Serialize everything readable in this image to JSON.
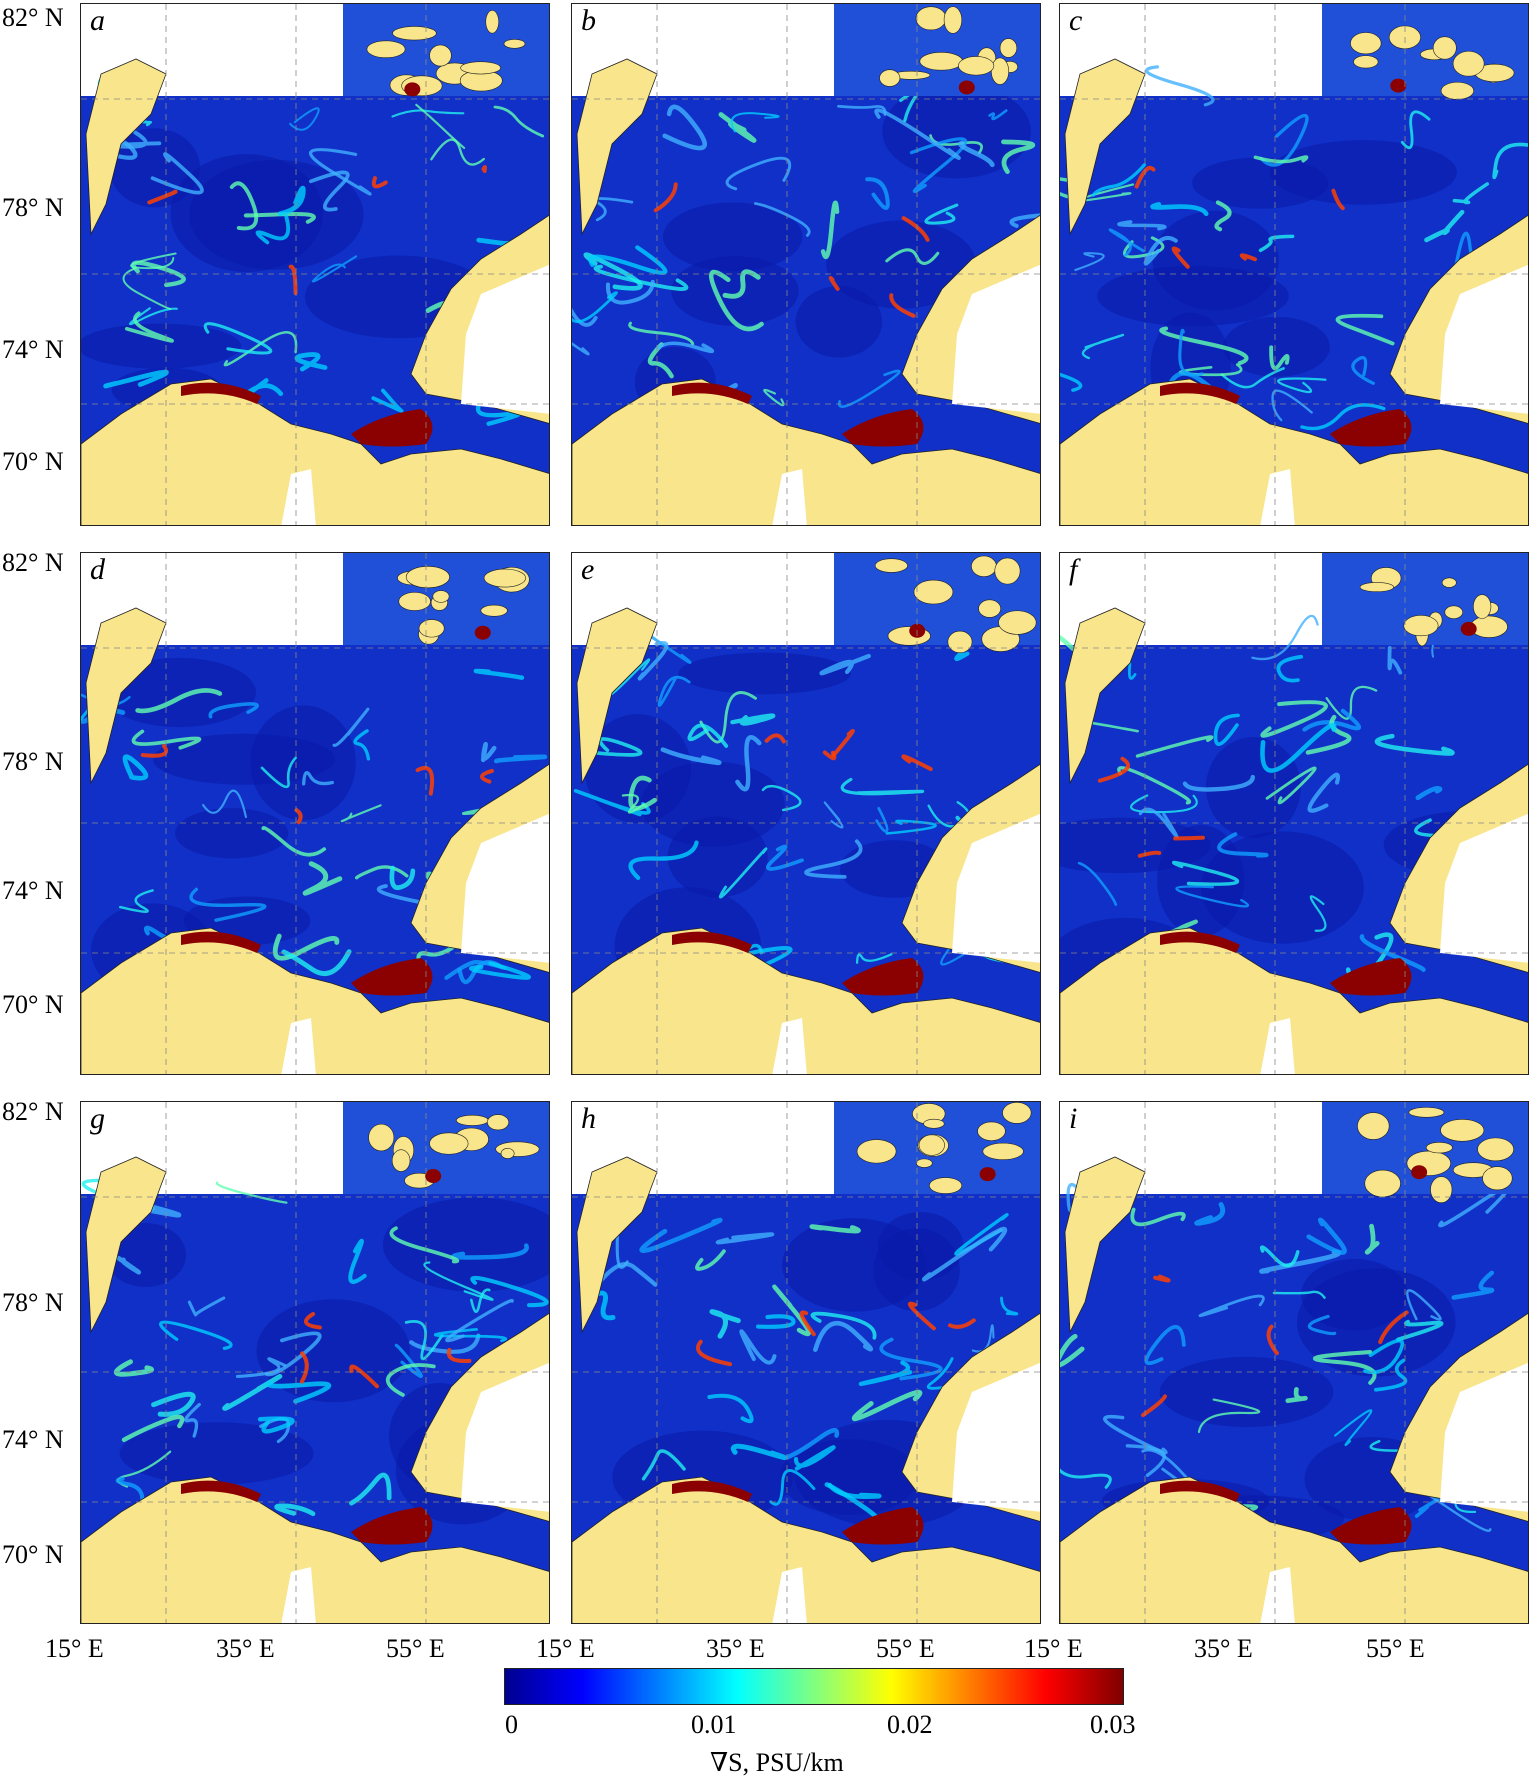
{
  "panels": [
    {
      "letter": "a"
    },
    {
      "letter": "b"
    },
    {
      "letter": "c"
    },
    {
      "letter": "d"
    },
    {
      "letter": "e"
    },
    {
      "letter": "f"
    },
    {
      "letter": "g"
    },
    {
      "letter": "h"
    },
    {
      "letter": "i"
    }
  ],
  "lat_labels": [
    "82° N",
    "78° N",
    "74° N",
    "70° N"
  ],
  "lon_labels": [
    "15° E",
    "35° E",
    "55° E"
  ],
  "colorbar": {
    "ticks": [
      "0",
      "0.01",
      "0.02",
      "0.03"
    ],
    "title": "∇S, PSU/km",
    "colors": [
      "#00008f",
      "#0000ff",
      "#0080ff",
      "#00ffff",
      "#80ff80",
      "#ffff00",
      "#ff8000",
      "#ff0000",
      "#800000"
    ],
    "range": [
      0,
      0.03
    ]
  },
  "colors": {
    "land": "#f8e58c",
    "ocean_background": "#1030c8",
    "high_gradient": "#8b0000"
  }
}
